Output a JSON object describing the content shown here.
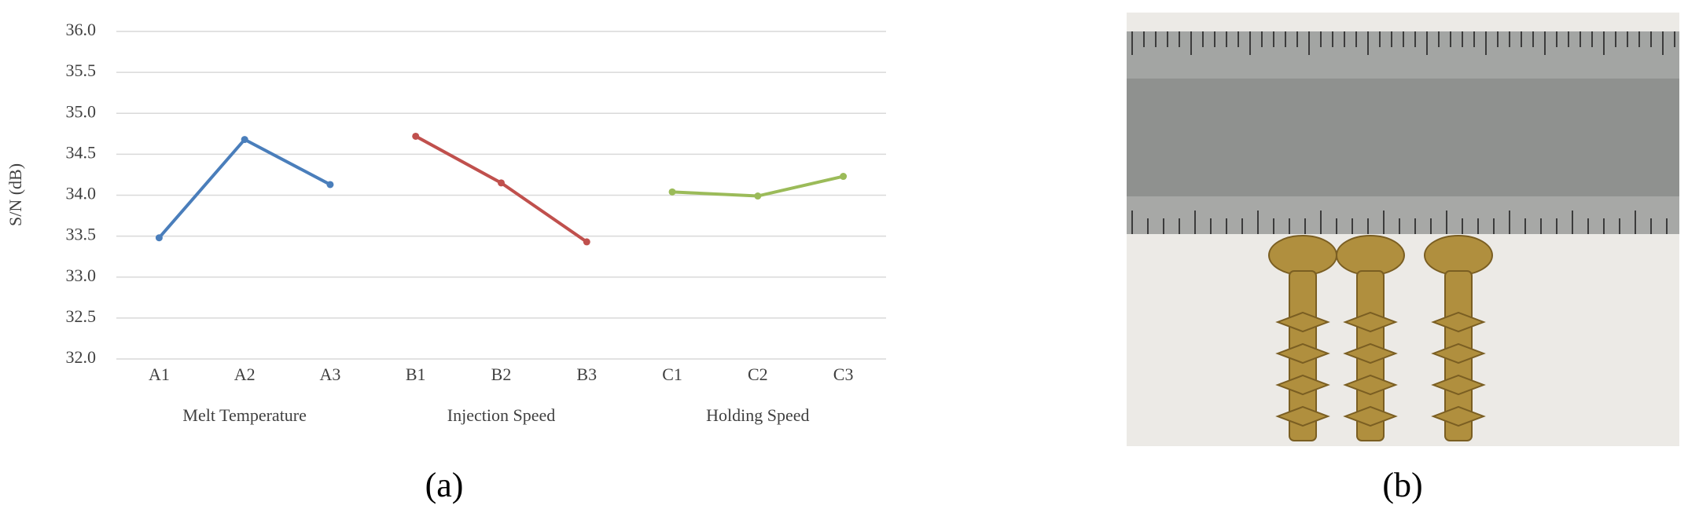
{
  "chart_data": {
    "type": "line",
    "y_label": "S/N (dB)",
    "categories": [
      "A1",
      "A2",
      "A3",
      "B1",
      "B2",
      "B3",
      "C1",
      "C2",
      "C3"
    ],
    "series": [
      {
        "name": "Melt Temperature",
        "color": "#4a7ebb",
        "values": [
          33.48,
          34.68,
          34.13,
          null,
          null,
          null,
          null,
          null,
          null
        ]
      },
      {
        "name": "Injection Speed",
        "color": "#c0504d",
        "values": [
          null,
          null,
          null,
          34.72,
          34.15,
          33.43,
          null,
          null,
          null
        ]
      },
      {
        "name": "Holding Speed",
        "color": "#9bbb59",
        "values": [
          null,
          null,
          null,
          null,
          null,
          null,
          34.04,
          33.99,
          34.23
        ]
      }
    ],
    "ylim": [
      32,
      36
    ],
    "yticks": [
      {
        "value": 32,
        "label": "32.0"
      },
      32.5,
      {
        "value": 33,
        "label": "33.0"
      },
      33.5,
      {
        "value": 34,
        "label": "34.0"
      },
      34.5,
      {
        "value": 35,
        "label": "35.0"
      },
      35.5,
      {
        "value": 36,
        "label": "36.0"
      }
    ],
    "grid": true,
    "panel_labels": [
      "(a)",
      "(b)"
    ]
  }
}
